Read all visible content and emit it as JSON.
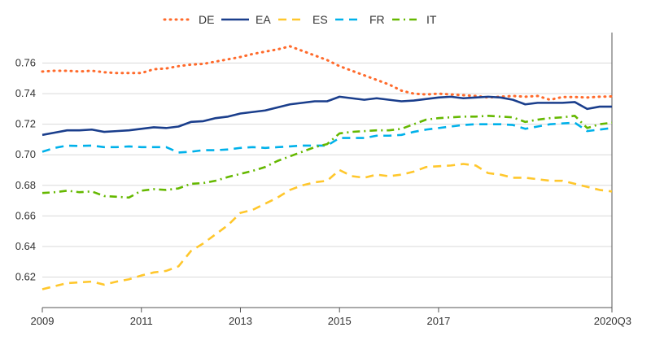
{
  "chart_data": {
    "type": "line",
    "title": "",
    "xlabel": "",
    "ylabel": "",
    "x_start": 2009.0,
    "x_end": 2020.5,
    "ylim": [
      0.6,
      0.78
    ],
    "yticks": [
      "0.62",
      "0.64",
      "0.66",
      "0.68",
      "0.70",
      "0.72",
      "0.74",
      "0.76"
    ],
    "xticks": [
      {
        "value": 2009,
        "label": "2009"
      },
      {
        "value": 2011,
        "label": "2011"
      },
      {
        "value": 2013,
        "label": "2013"
      },
      {
        "value": 2015,
        "label": "2015"
      },
      {
        "value": 2017,
        "label": "2017"
      },
      {
        "value": 2020.5,
        "label": "2020Q3"
      }
    ],
    "grid": "horizontal",
    "legend_position": "top-center",
    "series": [
      {
        "name": "DE",
        "color": "#ff6a2b",
        "style": "dotted",
        "values": [
          0.7545,
          0.755,
          0.755,
          0.7545,
          0.755,
          0.754,
          0.7535,
          0.7535,
          0.7535,
          0.756,
          0.7565,
          0.758,
          0.759,
          0.7595,
          0.761,
          0.7625,
          0.764,
          0.766,
          0.7675,
          0.769,
          0.771,
          0.768,
          0.765,
          0.762,
          0.758,
          0.755,
          0.752,
          0.749,
          0.746,
          0.742,
          0.74,
          0.7395,
          0.74,
          0.7395,
          0.739,
          0.7385,
          0.7375,
          0.738,
          0.7385,
          0.738,
          0.7385,
          0.736,
          0.7378,
          0.7378,
          0.7375,
          0.738,
          0.7382
        ]
      },
      {
        "name": "EA",
        "color": "#1a3e8c",
        "style": "solid",
        "values": [
          0.713,
          0.7145,
          0.716,
          0.716,
          0.7165,
          0.715,
          0.7155,
          0.716,
          0.717,
          0.718,
          0.7175,
          0.7185,
          0.7215,
          0.722,
          0.724,
          0.725,
          0.727,
          0.728,
          0.729,
          0.731,
          0.733,
          0.734,
          0.735,
          0.735,
          0.738,
          0.737,
          0.736,
          0.737,
          0.736,
          0.735,
          0.7355,
          0.7365,
          0.7375,
          0.738,
          0.737,
          0.7375,
          0.738,
          0.7375,
          0.736,
          0.733,
          0.734,
          0.734,
          0.734,
          0.7345,
          0.73,
          0.7315,
          0.7315
        ]
      },
      {
        "name": "ES",
        "color": "#ffc72c",
        "style": "dashed",
        "values": [
          0.612,
          0.614,
          0.616,
          0.6165,
          0.617,
          0.615,
          0.617,
          0.6185,
          0.621,
          0.623,
          0.624,
          0.627,
          0.637,
          0.642,
          0.648,
          0.654,
          0.662,
          0.664,
          0.668,
          0.672,
          0.677,
          0.68,
          0.682,
          0.683,
          0.69,
          0.686,
          0.685,
          0.687,
          0.686,
          0.687,
          0.689,
          0.692,
          0.6925,
          0.693,
          0.694,
          0.693,
          0.688,
          0.687,
          0.685,
          0.685,
          0.684,
          0.683,
          0.683,
          0.681,
          0.679,
          0.677,
          0.676
        ]
      },
      {
        "name": "FR",
        "color": "#00b1ea",
        "style": "dashed",
        "values": [
          0.702,
          0.7045,
          0.706,
          0.7058,
          0.706,
          0.705,
          0.705,
          0.7055,
          0.705,
          0.705,
          0.705,
          0.7015,
          0.702,
          0.703,
          0.703,
          0.7035,
          0.7045,
          0.705,
          0.7045,
          0.705,
          0.7055,
          0.706,
          0.706,
          0.706,
          0.711,
          0.711,
          0.711,
          0.7125,
          0.7125,
          0.713,
          0.715,
          0.7165,
          0.7175,
          0.7185,
          0.7195,
          0.72,
          0.72,
          0.72,
          0.7195,
          0.717,
          0.7185,
          0.72,
          0.7205,
          0.721,
          0.7155,
          0.7165,
          0.7175
        ]
      },
      {
        "name": "IT",
        "color": "#65b800",
        "style": "dashdot",
        "values": [
          0.675,
          0.6755,
          0.6765,
          0.6755,
          0.676,
          0.673,
          0.6725,
          0.672,
          0.6765,
          0.6775,
          0.677,
          0.678,
          0.681,
          0.6815,
          0.683,
          0.6855,
          0.6875,
          0.6895,
          0.692,
          0.696,
          0.699,
          0.702,
          0.705,
          0.707,
          0.714,
          0.715,
          0.7155,
          0.716,
          0.716,
          0.717,
          0.72,
          0.723,
          0.724,
          0.7245,
          0.725,
          0.725,
          0.7255,
          0.725,
          0.7245,
          0.7215,
          0.723,
          0.724,
          0.7245,
          0.7255,
          0.7175,
          0.72,
          0.721
        ]
      }
    ]
  }
}
